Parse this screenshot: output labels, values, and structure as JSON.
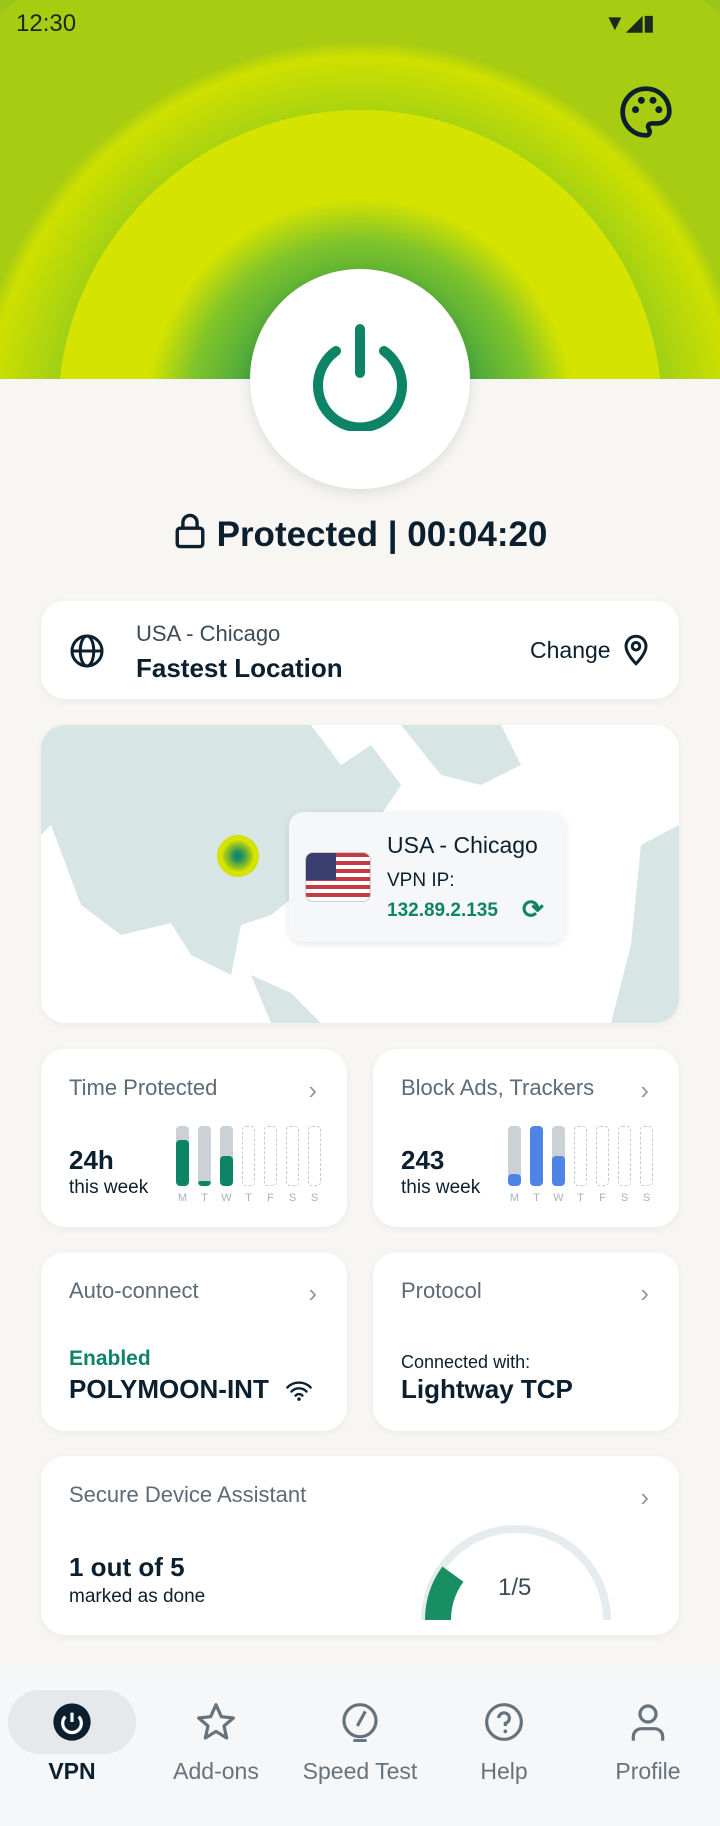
{
  "status_bar": {
    "time": "12:30"
  },
  "connection": {
    "state": "Protected",
    "separator": "|",
    "timer": "00:04:20"
  },
  "location": {
    "country_city": "USA - Chicago",
    "label": "Fastest Location",
    "change": "Change"
  },
  "map_popup": {
    "location": "USA - Chicago",
    "ip_label": "VPN IP:",
    "ip": "132.89.2.135"
  },
  "cards": {
    "time_protected": {
      "title": "Time Protected",
      "value": "24h",
      "sub": "this week",
      "days": [
        "M",
        "T",
        "W",
        "T",
        "F",
        "S",
        "S"
      ],
      "levels": [
        0.77,
        0.08,
        0.5,
        null,
        null,
        null,
        null
      ],
      "color": "#0e8466"
    },
    "block_ads": {
      "title": "Block Ads, Trackers",
      "value": "243",
      "sub": "this week",
      "days": [
        "M",
        "T",
        "W",
        "T",
        "F",
        "S",
        "S"
      ],
      "levels": [
        0.2,
        1,
        0.5,
        null,
        null,
        null,
        null
      ],
      "color": "#4f84e6"
    },
    "auto_connect": {
      "title": "Auto-connect",
      "status": "Enabled",
      "network": "POLYMOON-INT"
    },
    "protocol": {
      "title": "Protocol",
      "sub": "Connected with:",
      "value": "Lightway TCP"
    },
    "sda": {
      "title": "Secure Device Assistant",
      "value": "1 out of 5",
      "sub": "marked as done",
      "gauge_label": "1/5",
      "done": 1,
      "total": 5
    }
  },
  "nav": [
    {
      "label": "VPN",
      "icon": "power-icon",
      "active": true
    },
    {
      "label": "Add-ons",
      "icon": "star-icon"
    },
    {
      "label": "Speed Test",
      "icon": "speedometer-icon"
    },
    {
      "label": "Help",
      "icon": "help-icon"
    },
    {
      "label": "Profile",
      "icon": "profile-icon"
    }
  ],
  "colors": {
    "accent": "#0e8466",
    "hero_lime": "#cfe000",
    "hero_green": "#52b33a",
    "blue": "#4f84e6"
  }
}
